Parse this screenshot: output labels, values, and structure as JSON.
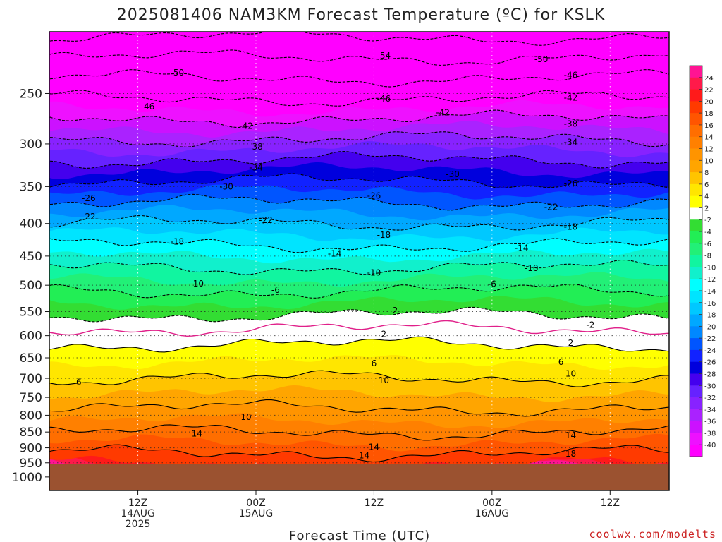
{
  "chart_data": {
    "type": "heatmap",
    "title": "2025081406 NAM3KM Forecast Temperature (ºC) for KSLK",
    "xlabel": "Forecast Time (UTC)",
    "ylabel": "",
    "credit": "coolwx.com/modelts",
    "y_scale": "log",
    "y_inverted": true,
    "ylim": [
      1050,
      200
    ],
    "yticks": [
      250,
      300,
      350,
      400,
      450,
      500,
      550,
      600,
      650,
      700,
      750,
      800,
      850,
      900,
      950,
      1000
    ],
    "surface_pressure_hpa": 955,
    "xlim_hours": [
      -15,
      48
    ],
    "xticks": [
      {
        "hour": -6,
        "lines": [
          "12Z",
          "14AUG",
          "2025"
        ]
      },
      {
        "hour": 6,
        "lines": [
          "00Z",
          "15AUG"
        ]
      },
      {
        "hour": 18,
        "lines": [
          "12Z"
        ]
      },
      {
        "hour": 30,
        "lines": [
          "00Z",
          "16AUG"
        ]
      },
      {
        "hour": 42,
        "lines": [
          "12Z"
        ]
      }
    ],
    "colorbar": {
      "levels": [
        24,
        22,
        20,
        18,
        16,
        14,
        12,
        10,
        8,
        6,
        4,
        2,
        -2,
        -4,
        -6,
        -8,
        -10,
        -12,
        -14,
        -16,
        -18,
        -20,
        -22,
        -24,
        -26,
        -28,
        -30,
        -32,
        -34,
        -36,
        -38,
        -40
      ],
      "colors": [
        "#ff1493",
        "#ff1a4a",
        "#ff1a1a",
        "#ff3a00",
        "#ff5500",
        "#ff6e00",
        "#ff8000",
        "#ff9400",
        "#ffa500",
        "#ffc400",
        "#ffe600",
        "#ffff00",
        "#ffffff",
        "#33dd33",
        "#22ee55",
        "#22f077",
        "#11f5a0",
        "#11f0cc",
        "#00ffff",
        "#00e4ff",
        "#00c8ff",
        "#00a8ff",
        "#0088ff",
        "#0055ff",
        "#1122ff",
        "#0000dd",
        "#4400ee",
        "#6622ff",
        "#8822ff",
        "#aa22ff",
        "#cc11ff",
        "#ee11ff",
        "#ff00ff"
      ]
    },
    "isotherm_profile": [
      {
        "pressure": 955,
        "temp": 20
      },
      {
        "pressure": 900,
        "temp": 17
      },
      {
        "pressure": 850,
        "temp": 14
      },
      {
        "pressure": 800,
        "temp": 11
      },
      {
        "pressure": 750,
        "temp": 8.5
      },
      {
        "pressure": 700,
        "temp": 6
      },
      {
        "pressure": 650,
        "temp": 3.5
      },
      {
        "pressure": 600,
        "temp": 1
      },
      {
        "pressure": 550,
        "temp": -2.5
      },
      {
        "pressure": 500,
        "temp": -7
      },
      {
        "pressure": 450,
        "temp": -12
      },
      {
        "pressure": 400,
        "temp": -18
      },
      {
        "pressure": 350,
        "temp": -25
      },
      {
        "pressure": 300,
        "temp": -33
      },
      {
        "pressure": 250,
        "temp": -43
      },
      {
        "pressure": 200,
        "temp": -55
      }
    ],
    "contours": [
      {
        "temp": -54,
        "label_hour": 19,
        "label_pressure": 218
      },
      {
        "temp": -50,
        "label_hour": -2,
        "label_pressure": 232
      },
      {
        "temp": -50,
        "label_hour": 35,
        "label_pressure": 221
      },
      {
        "temp": -46,
        "label_hour": -5,
        "label_pressure": 262
      },
      {
        "temp": -46,
        "label_hour": 19,
        "label_pressure": 255
      },
      {
        "temp": -46,
        "label_hour": 38,
        "label_pressure": 234
      },
      {
        "temp": -42,
        "label_hour": 5,
        "label_pressure": 281
      },
      {
        "temp": -42,
        "label_hour": 25,
        "label_pressure": 268
      },
      {
        "temp": -42,
        "label_hour": 38,
        "label_pressure": 254
      },
      {
        "temp": -38,
        "label_hour": 6,
        "label_pressure": 303
      },
      {
        "temp": -38,
        "label_hour": 38,
        "label_pressure": 279
      },
      {
        "temp": -34,
        "label_hour": 6,
        "label_pressure": 327
      },
      {
        "temp": -34,
        "label_hour": 38,
        "label_pressure": 298
      },
      {
        "temp": -30,
        "label_hour": 3,
        "label_pressure": 350
      },
      {
        "temp": -30,
        "label_hour": 26,
        "label_pressure": 335
      },
      {
        "temp": -26,
        "label_hour": -11,
        "label_pressure": 365
      },
      {
        "temp": -26,
        "label_hour": 18,
        "label_pressure": 362
      },
      {
        "temp": -26,
        "label_hour": 38,
        "label_pressure": 346
      },
      {
        "temp": -22,
        "label_hour": -11,
        "label_pressure": 390
      },
      {
        "temp": -22,
        "label_hour": 7,
        "label_pressure": 395
      },
      {
        "temp": -22,
        "label_hour": 36,
        "label_pressure": 377
      },
      {
        "temp": -18,
        "label_hour": -2,
        "label_pressure": 427
      },
      {
        "temp": -18,
        "label_hour": 19,
        "label_pressure": 417
      },
      {
        "temp": -18,
        "label_hour": 38,
        "label_pressure": 405
      },
      {
        "temp": -14,
        "label_hour": 14,
        "label_pressure": 446
      },
      {
        "temp": -14,
        "label_hour": 33,
        "label_pressure": 437
      },
      {
        "temp": -10,
        "label_hour": 0,
        "label_pressure": 497
      },
      {
        "temp": -10,
        "label_hour": 18,
        "label_pressure": 478
      },
      {
        "temp": -10,
        "label_hour": 34,
        "label_pressure": 470
      },
      {
        "temp": -6,
        "label_hour": 8,
        "label_pressure": 509
      },
      {
        "temp": -6,
        "label_hour": 30,
        "label_pressure": 498
      },
      {
        "temp": -2,
        "label_hour": 20,
        "label_pressure": 548
      },
      {
        "temp": -2,
        "label_hour": 40,
        "label_pressure": 577
      },
      {
        "temp": 2,
        "label_hour": 19,
        "label_pressure": 597
      },
      {
        "temp": 2,
        "label_hour": 38,
        "label_pressure": 616
      },
      {
        "temp": 6,
        "label_hour": -12,
        "label_pressure": 710
      },
      {
        "temp": 6,
        "label_hour": 18,
        "label_pressure": 663
      },
      {
        "temp": 6,
        "label_hour": 37,
        "label_pressure": 660
      },
      {
        "temp": 10,
        "label_hour": 5,
        "label_pressure": 805
      },
      {
        "temp": 10,
        "label_hour": 19,
        "label_pressure": 705
      },
      {
        "temp": 10,
        "label_hour": 38,
        "label_pressure": 688
      },
      {
        "temp": 14,
        "label_hour": 0,
        "label_pressure": 855
      },
      {
        "temp": 14,
        "label_hour": 18,
        "label_pressure": 898
      },
      {
        "temp": 14,
        "label_hour": 17,
        "label_pressure": 925
      },
      {
        "temp": 14,
        "label_hour": 38,
        "label_pressure": 860
      },
      {
        "temp": 18,
        "label_hour": 38,
        "label_pressure": 920
      }
    ]
  }
}
